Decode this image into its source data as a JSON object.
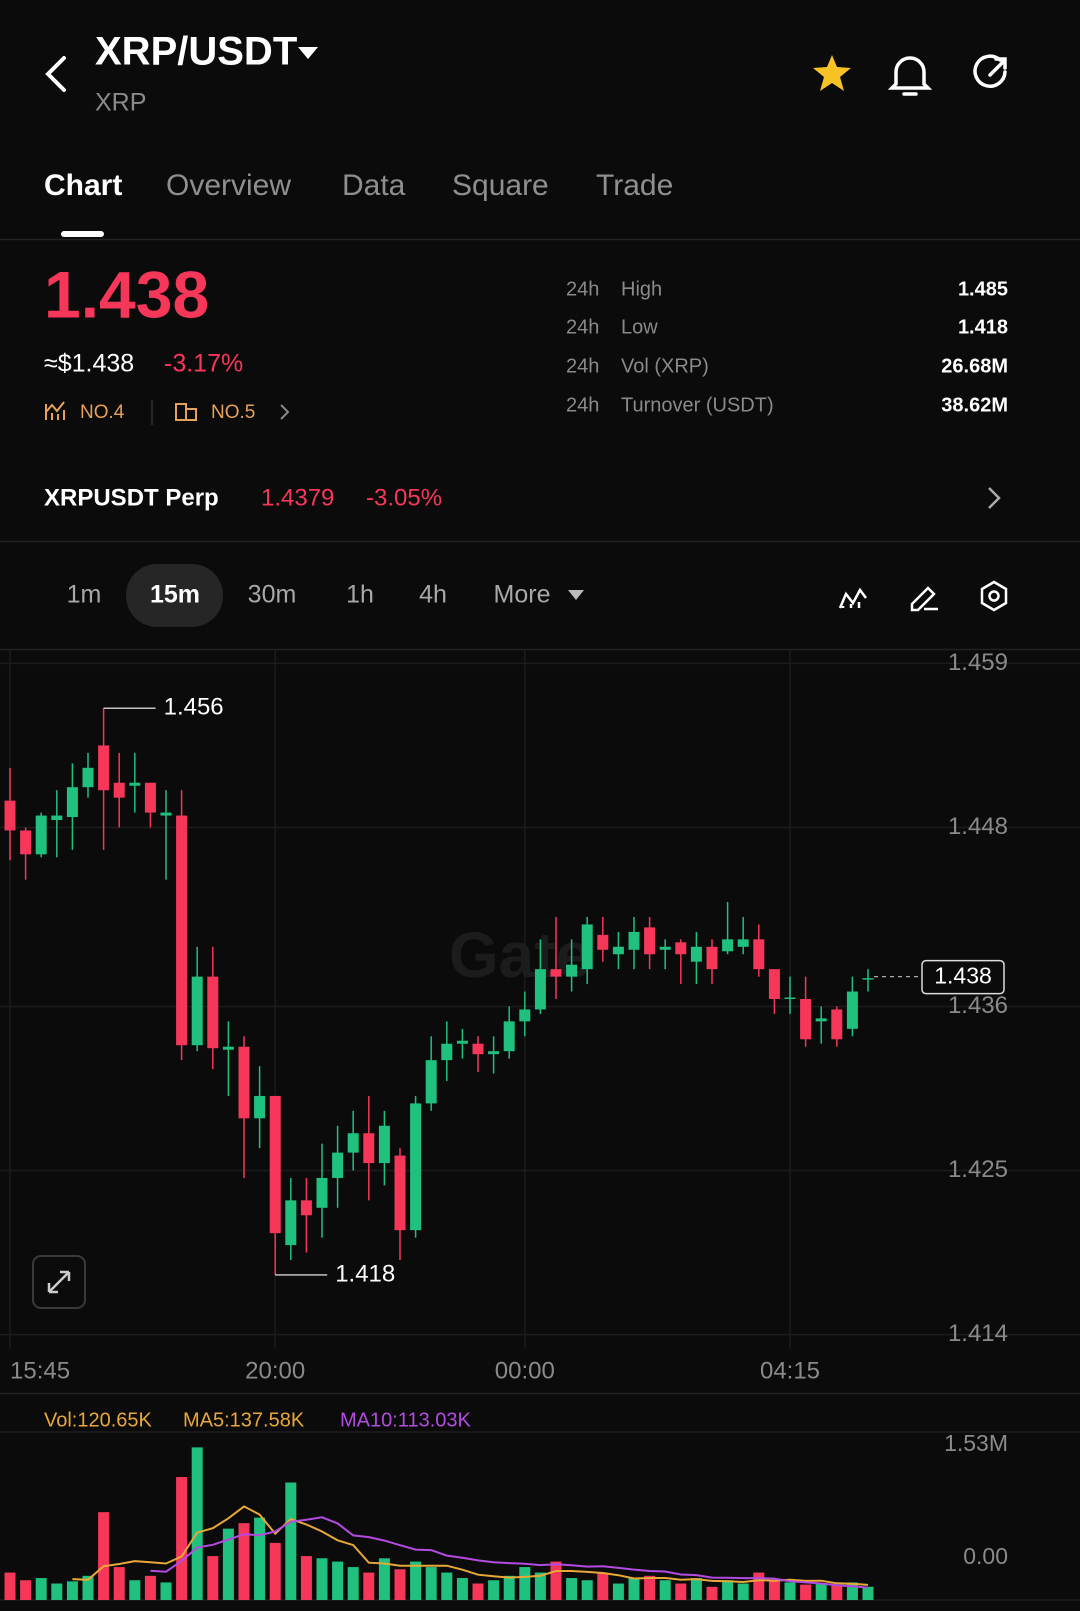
{
  "header": {
    "title": "XRP/USDT",
    "subtitle": "XRP"
  },
  "tabs": [
    "Chart",
    "Overview",
    "Data",
    "Square",
    "Trade"
  ],
  "price": {
    "last": "1.438",
    "usd": "≈$1.438",
    "change": "-3.17%",
    "rank_1": "NO.4",
    "rank_2": "NO.5"
  },
  "stats": [
    [
      "24h",
      "High",
      "1.485"
    ],
    [
      "24h",
      "Low",
      "1.418"
    ],
    [
      "24h",
      "Vol (XRP)",
      "26.68M"
    ],
    [
      "24h",
      "Turnover (USDT)",
      "38.62M"
    ]
  ],
  "perp": {
    "name": "XRPUSDT Perp",
    "price": "1.4379",
    "change": "-3.05%"
  },
  "intervals": [
    "1m",
    "15m",
    "30m",
    "1h",
    "4h",
    "More"
  ],
  "watermark": "Gate",
  "chart_data": [
    {
      "type": "candlestick",
      "categories": [
        "15:45",
        null,
        null,
        null,
        null,
        null,
        null,
        null,
        null,
        null,
        null,
        null,
        null,
        null,
        null,
        null,
        null,
        "20:00",
        null,
        null,
        null,
        null,
        null,
        null,
        null,
        null,
        null,
        null,
        null,
        null,
        null,
        null,
        null,
        "00:00",
        null,
        null,
        null,
        null,
        null,
        null,
        null,
        null,
        null,
        null,
        null,
        null,
        null,
        null,
        null,
        null,
        "04:15",
        null,
        null,
        null,
        null,
        null
      ],
      "open": [
        1.4498,
        1.4478,
        1.4462,
        1.4485,
        1.4487,
        1.4507,
        1.4535,
        1.451,
        1.4508,
        1.451,
        1.4488,
        1.4488,
        1.4334,
        1.438,
        1.4331,
        1.4333,
        1.4285,
        1.43,
        1.42,
        1.423,
        1.4225,
        1.4245,
        1.4262,
        1.4275,
        1.4255,
        1.426,
        1.421,
        1.4295,
        1.4324,
        1.4335,
        1.4335,
        1.4328,
        1.433,
        1.435,
        1.4358,
        1.4385,
        1.438,
        1.4385,
        1.4408,
        1.4395,
        1.4398,
        1.4413,
        1.4398,
        1.4403,
        1.439,
        1.44,
        1.4397,
        1.44,
        1.4405,
        1.4385,
        1.4365,
        1.4365,
        1.435,
        1.4358,
        1.4345,
        1.4378
      ],
      "high": [
        1.452,
        1.448,
        1.449,
        1.4505,
        1.4523,
        1.453,
        1.456,
        1.453,
        1.453,
        1.451,
        1.4505,
        1.4505,
        1.44,
        1.44,
        1.435,
        1.434,
        1.432,
        1.43,
        1.4245,
        1.4245,
        1.4268,
        1.428,
        1.429,
        1.43,
        1.429,
        1.4265,
        1.43,
        1.434,
        1.435,
        1.4345,
        1.434,
        1.434,
        1.436,
        1.437,
        1.4405,
        1.442,
        1.4405,
        1.442,
        1.442,
        1.441,
        1.442,
        1.442,
        1.4405,
        1.4405,
        1.441,
        1.4405,
        1.443,
        1.442,
        1.4415,
        1.4385,
        1.438,
        1.438,
        1.436,
        1.436,
        1.438,
        1.4385
      ],
      "low": [
        1.4458,
        1.4445,
        1.446,
        1.446,
        1.4465,
        1.45,
        1.4465,
        1.448,
        1.449,
        1.448,
        1.4445,
        1.4324,
        1.433,
        1.4318,
        1.43,
        1.4245,
        1.4265,
        1.418,
        1.419,
        1.4195,
        1.4205,
        1.4225,
        1.425,
        1.423,
        1.424,
        1.419,
        1.4205,
        1.429,
        1.431,
        1.4325,
        1.4316,
        1.4315,
        1.4325,
        1.434,
        1.4355,
        1.4365,
        1.437,
        1.4375,
        1.439,
        1.4385,
        1.4385,
        1.4385,
        1.4385,
        1.4375,
        1.4375,
        1.4375,
        1.4395,
        1.4395,
        1.438,
        1.4355,
        1.4355,
        1.4333,
        1.4335,
        1.4333,
        1.434,
        1.437
      ],
      "close": [
        1.4478,
        1.4462,
        1.4488,
        1.4488,
        1.4507,
        1.452,
        1.4505,
        1.45,
        1.451,
        1.449,
        1.449,
        1.4334,
        1.438,
        1.4332,
        1.4333,
        1.4285,
        1.43,
        1.4208,
        1.423,
        1.422,
        1.4245,
        1.4262,
        1.4275,
        1.4255,
        1.428,
        1.421,
        1.4295,
        1.4324,
        1.4335,
        1.4337,
        1.4328,
        1.433,
        1.435,
        1.4358,
        1.4385,
        1.438,
        1.4388,
        1.4415,
        1.4398,
        1.44,
        1.441,
        1.4395,
        1.44,
        1.4395,
        1.44,
        1.4385,
        1.4405,
        1.4405,
        1.4385,
        1.4365,
        1.4366,
        1.4338,
        1.4352,
        1.4338,
        1.437,
        1.4379
      ],
      "up_color": "#20c07e",
      "down_color": "#f6375a",
      "ylim": [
        1.4131,
        1.4599
      ],
      "yticks": [
        1.414,
        1.425,
        1.436,
        1.448,
        1.459
      ],
      "grid": true,
      "high_label": 1.456,
      "low_label": 1.418,
      "last_price": 1.438
    },
    {
      "type": "bar",
      "legend": [
        "Vol:120.65K",
        "MA5:137.58K",
        "MA10:113.03K"
      ],
      "legend_colors": [
        "#e8a838",
        "#e8a838",
        "#b44be1"
      ],
      "series": [
        {
          "values": [
            250000,
            180000,
            200000,
            150000,
            170000,
            220000,
            800000,
            300000,
            180000,
            220000,
            160000,
            1120000,
            1390000,
            400000,
            650000,
            700000,
            750000,
            520000,
            1070000,
            400000,
            380000,
            350000,
            300000,
            250000,
            380000,
            280000,
            350000,
            300000,
            250000,
            200000,
            150000,
            180000,
            220000,
            300000,
            250000,
            350000,
            200000,
            180000,
            250000,
            150000,
            200000,
            220000,
            180000,
            150000,
            200000,
            120000,
            180000,
            150000,
            250000,
            180000,
            160000,
            140000,
            150000,
            130000,
            160000,
            120650
          ]
        },
        {
          "color": "#e8a838",
          "values": [
            null,
            null,
            null,
            null,
            190000,
            184000,
            308000,
            328000,
            354000,
            344000,
            332000,
            396000,
            614000,
            654000,
            744000,
            852000,
            778000,
            604000,
            738000,
            688000,
            624000,
            544000,
            500000,
            340000,
            332000,
            312000,
            312000,
            312000,
            312000,
            276000,
            230000,
            216000,
            204000,
            210000,
            220000,
            264000,
            264000,
            256000,
            246000,
            226000,
            196000,
            200000,
            200000,
            184000,
            190000,
            174000,
            170000,
            164000,
            180000,
            176000,
            184000,
            174000,
            176000,
            152000,
            148000,
            137580
          ]
        },
        {
          "color": "#b44be1",
          "values": [
            null,
            null,
            null,
            null,
            null,
            null,
            null,
            null,
            null,
            267000,
            258000,
            355000,
            478000,
            503000,
            551000,
            599000,
            590000,
            624000,
            713000,
            731000,
            753000,
            698000,
            588000,
            573000,
            541000,
            499000,
            459000,
            454000,
            404000,
            384000,
            361000,
            344000,
            336000,
            331000,
            318000,
            325000,
            316000,
            304000,
            307000,
            292000,
            277000,
            264000,
            260000,
            232000,
            227000,
            204000,
            202000,
            199000,
            199000,
            195000,
            170000,
            160000,
            150000,
            135000,
            125000,
            113030
          ]
        }
      ],
      "ylim": [
        0,
        1530000
      ],
      "yticks": [
        {
          "value": 0,
          "label": "0.00"
        },
        {
          "value": 1530000,
          "label": "1.53M"
        }
      ]
    }
  ]
}
